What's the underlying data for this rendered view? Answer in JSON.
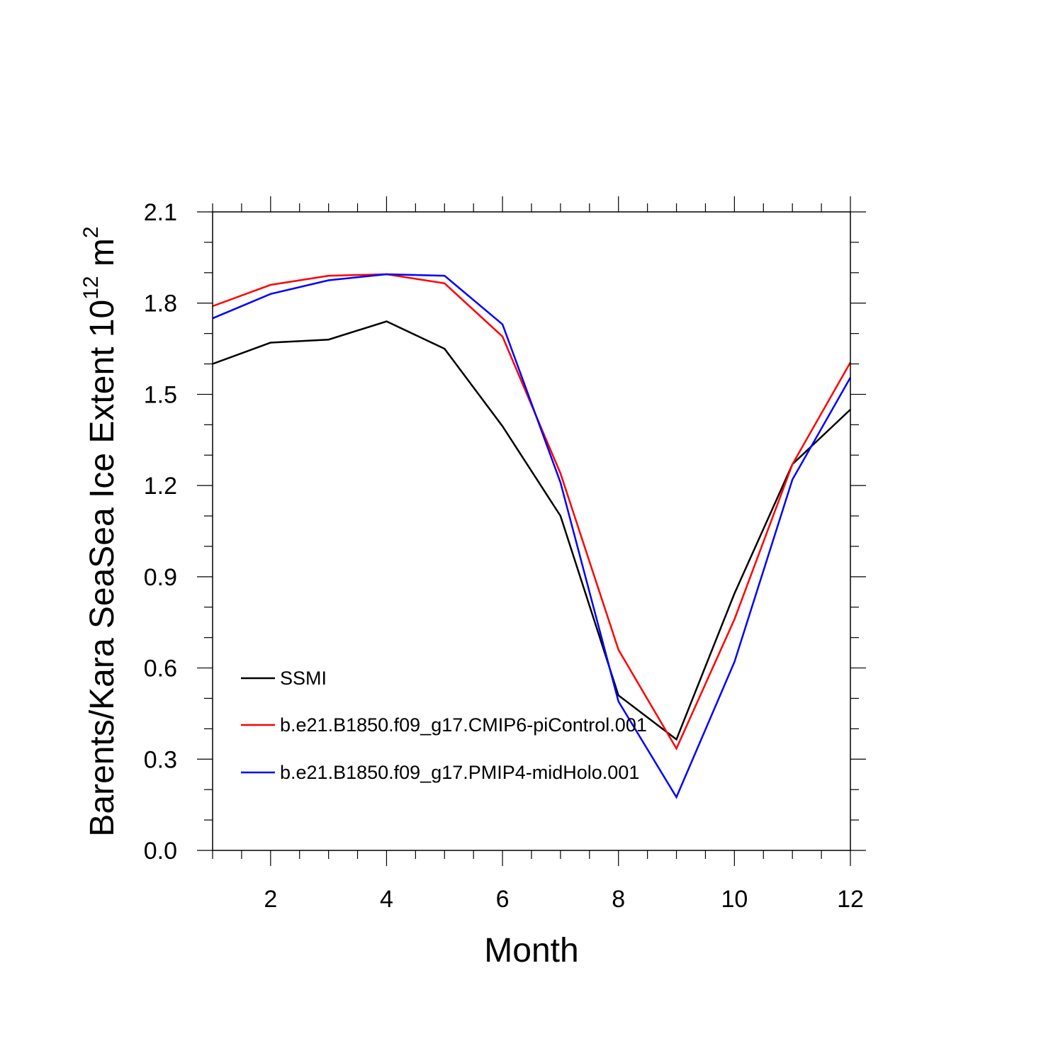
{
  "chart_data": {
    "type": "line",
    "title": "",
    "xlabel": "Month",
    "ylabel": {
      "base": "Barents/Kara SeaSea Ice Extent 10",
      "exp1": "12",
      "unit": " m",
      "exp2": "2"
    },
    "xlim": [
      1,
      12
    ],
    "ylim": [
      0.0,
      2.1
    ],
    "xticks": [
      2,
      4,
      6,
      8,
      10,
      12
    ],
    "xtick_labels": [
      "2",
      "4",
      "6",
      "8",
      "10",
      "12"
    ],
    "yticks": [
      0.0,
      0.3,
      0.6,
      0.9,
      1.2,
      1.5,
      1.8,
      2.1
    ],
    "ytick_labels": [
      "0.0",
      "0.3",
      "0.6",
      "0.9",
      "1.2",
      "1.5",
      "1.8",
      "2.1"
    ],
    "x_minor_step": 0.5,
    "y_minor_step": 0.1,
    "grid": false,
    "legend_position": "lower-left",
    "x": [
      1,
      2,
      3,
      4,
      5,
      6,
      7,
      8,
      9,
      10,
      11,
      12
    ],
    "series": [
      {
        "name": "SSMI",
        "color": "#000000",
        "values": [
          1.6,
          1.67,
          1.68,
          1.74,
          1.65,
          1.395,
          1.1,
          0.51,
          0.365,
          0.845,
          1.27,
          1.45
        ]
      },
      {
        "name": "b.e21.B1850.f09_g17.CMIP6-piControl.001",
        "color": "#ff0000",
        "values": [
          1.79,
          1.86,
          1.89,
          1.895,
          1.865,
          1.69,
          1.24,
          0.66,
          0.335,
          0.76,
          1.27,
          1.605
        ]
      },
      {
        "name": "b.e21.B1850.f09_g17.PMIP4-midHolo.001",
        "color": "#0000ff",
        "values": [
          1.75,
          1.83,
          1.875,
          1.895,
          1.89,
          1.73,
          1.21,
          0.49,
          0.175,
          0.62,
          1.22,
          1.555
        ]
      }
    ]
  }
}
